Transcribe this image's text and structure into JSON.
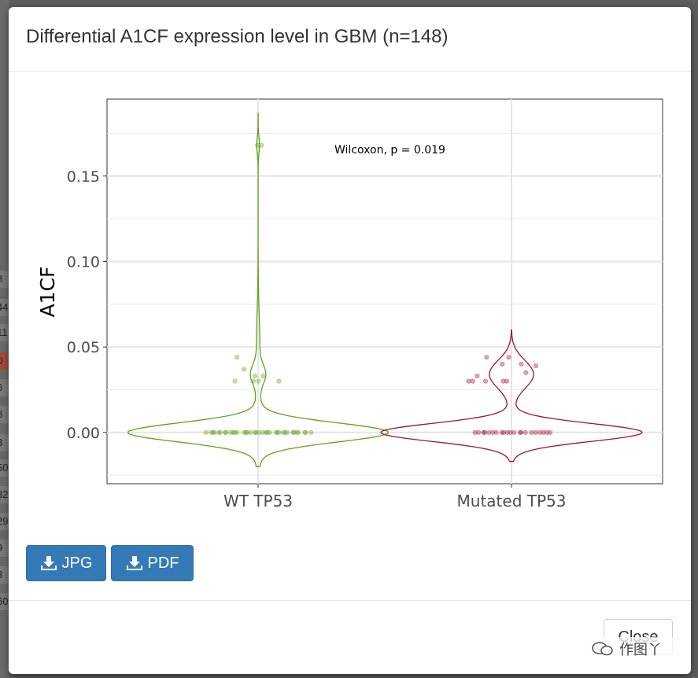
{
  "background": {
    "rows": [
      "8",
      "44",
      "11",
      "0",
      "6",
      "8",
      "3",
      "50",
      "32",
      "29",
      "9",
      "3",
      "60"
    ]
  },
  "modal": {
    "title": "Differential A1CF expression level in GBM (n=148)",
    "buttons": {
      "jpg_label": "JPG",
      "pdf_label": "PDF",
      "close_label": "Close"
    },
    "watermark": "作图丫"
  },
  "colors": {
    "wt": "#5ea31c",
    "mutated": "#a01236",
    "primary": "#337ab7"
  },
  "chart_data": {
    "type": "violin",
    "ylabel": "A1CF",
    "xlabel": "",
    "categories": [
      "WT TP53",
      "Mutated TP53"
    ],
    "ylim": [
      -0.03,
      0.195
    ],
    "yticks": [
      0.0,
      0.05,
      0.1,
      0.15
    ],
    "ytick_labels": [
      "0.00",
      "0.05",
      "0.10",
      "0.15"
    ],
    "annotation": "Wilcoxon, p = 0.019",
    "grid": true,
    "series": [
      {
        "category": "WT TP53",
        "points": [
          0.168,
          0.168,
          0.044,
          0.037,
          0.033,
          0.03,
          0.03,
          0.03,
          0.033,
          0.03,
          0.0,
          0.0,
          0.0,
          0.0,
          0.0,
          0.0,
          0.0,
          0.0,
          0.0,
          0.0,
          0.0,
          0.0,
          0.0,
          0.0,
          0.0,
          0.0,
          0.0,
          0.0,
          0.0,
          0.0,
          0.0,
          0.0,
          0.0,
          0.0,
          0.0,
          0.0,
          0.0,
          0.0,
          0.0,
          0.0,
          0.0,
          0.0,
          0.0,
          0.0,
          0.0,
          0.0
        ],
        "range": [
          -0.02,
          0.187
        ]
      },
      {
        "category": "Mutated TP53",
        "points": [
          0.044,
          0.044,
          0.04,
          0.04,
          0.039,
          0.035,
          0.033,
          0.03,
          0.03,
          0.03,
          0.03,
          0.03,
          0.0,
          0.0,
          0.0,
          0.0,
          0.0,
          0.0,
          0.0,
          0.0,
          0.0,
          0.0,
          0.0,
          0.0,
          0.0,
          0.0,
          0.0,
          0.0,
          0.0,
          0.0,
          0.0,
          0.0,
          0.0
        ],
        "range": [
          -0.017,
          0.06
        ]
      }
    ]
  }
}
